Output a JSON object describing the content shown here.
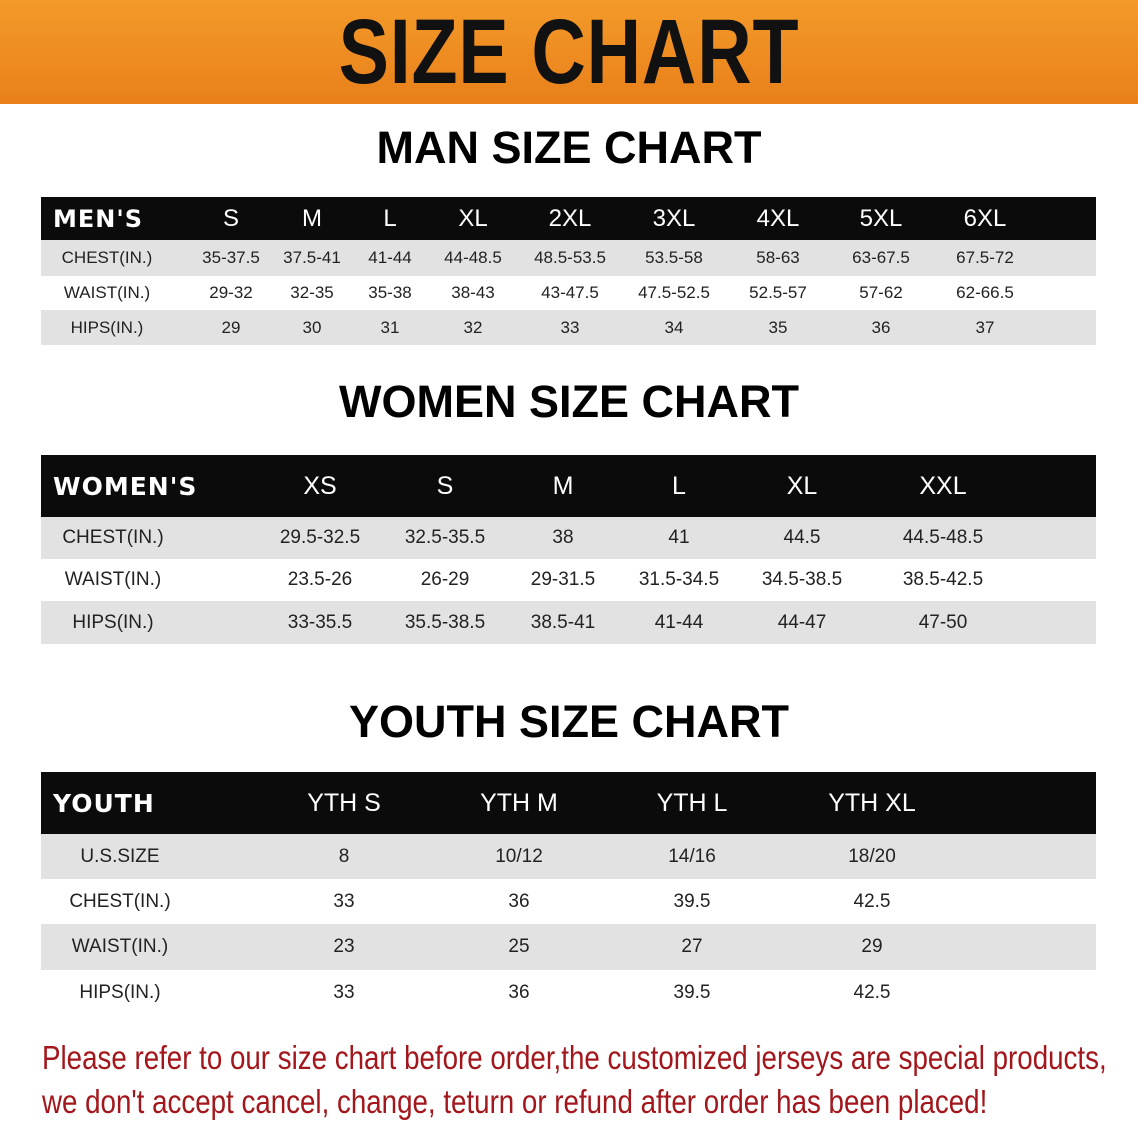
{
  "banner_title": "SIZE CHART",
  "men": {
    "title": "MAN SIZE CHART",
    "header": [
      "MEN'S",
      "S",
      "M",
      "L",
      "XL",
      "2XL",
      "3XL",
      "4XL",
      "5XL",
      "6XL"
    ],
    "rows": [
      [
        "CHEST(IN.)",
        "35-37.5",
        "37.5-41",
        "41-44",
        "44-48.5",
        "48.5-53.5",
        "53.5-58",
        "58-63",
        "63-67.5",
        "67.5-72"
      ],
      [
        "WAIST(IN.)",
        "29-32",
        "32-35",
        "35-38",
        "38-43",
        "43-47.5",
        "47.5-52.5",
        "52.5-57",
        "57-62",
        "62-66.5"
      ],
      [
        "HIPS(IN.)",
        "29",
        "30",
        "31",
        "32",
        "33",
        "34",
        "35",
        "36",
        "37"
      ]
    ]
  },
  "women": {
    "title": "WOMEN SIZE CHART",
    "header": [
      "WOMEN'S",
      "XS",
      "S",
      "M",
      "L",
      "XL",
      "XXL"
    ],
    "rows": [
      [
        "CHEST(IN.)",
        "29.5-32.5",
        "32.5-35.5",
        "38",
        "41",
        "44.5",
        "44.5-48.5"
      ],
      [
        "WAIST(IN.)",
        "23.5-26",
        "26-29",
        "29-31.5",
        "31.5-34.5",
        "34.5-38.5",
        "38.5-42.5"
      ],
      [
        "HIPS(IN.)",
        "33-35.5",
        "35.5-38.5",
        "38.5-41",
        "41-44",
        "44-47",
        "47-50"
      ]
    ]
  },
  "youth": {
    "title": "YOUTH SIZE CHART",
    "header": [
      "YOUTH",
      "YTH S",
      "YTH M",
      "YTH L",
      "YTH XL"
    ],
    "rows": [
      [
        "U.S.SIZE",
        "8",
        "10/12",
        "14/16",
        "18/20"
      ],
      [
        "CHEST(IN.)",
        "33",
        "36",
        "39.5",
        "42.5"
      ],
      [
        "WAIST(IN.)",
        "23",
        "25",
        "27",
        "29"
      ],
      [
        "HIPS(IN.)",
        "33",
        "36",
        "39.5",
        "42.5"
      ]
    ]
  },
  "footer": {
    "line1": "Please refer to our size chart before order,the customized jerseys are special products,",
    "line2": "we don't accept cancel, change, teturn or refund after order has been placed!"
  },
  "colors": {
    "banner": "#ee8c20",
    "header_row": "#0b0b0b",
    "stripe": "#e2e2e2",
    "footer_text": "#a3161b"
  }
}
